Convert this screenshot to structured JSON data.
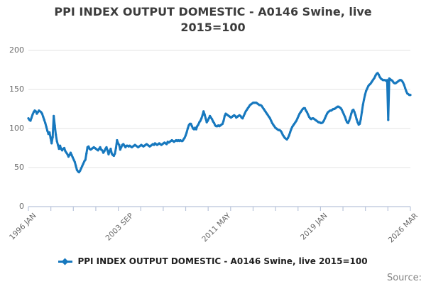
{
  "title": {
    "line1": "PPI INDEX OUTPUT DOMESTIC - A0146 Swine, live",
    "line2": "2015=100"
  },
  "legend": {
    "label": "PPI INDEX OUTPUT DOMESTIC - A0146 Swine, live 2015=100"
  },
  "source": {
    "label": "Source:"
  },
  "colors": {
    "series_blue": "#1778be",
    "gridline": "#e3e3e3",
    "axis_line": "#b9c4da",
    "title_text": "#3c3c3c",
    "tick_text": "#666666",
    "legend_text": "#1f1f1f",
    "source_text": "#838383"
  },
  "chart_data": {
    "type": "line",
    "title": "PPI INDEX OUTPUT DOMESTIC - A0146 Swine, live 2015=100",
    "xlabel": "",
    "ylabel": "",
    "x_unit": "month",
    "x_start": "1996 JAN",
    "x_end": "2026 MAR",
    "ylim": [
      0,
      200
    ],
    "y_ticks": [
      0,
      50,
      100,
      150,
      200
    ],
    "x_tick_labels": [
      {
        "month": 0,
        "label": "1996 JAN"
      },
      {
        "month": 92,
        "label": "2003 SEP"
      },
      {
        "month": 184,
        "label": "2011 MAY"
      },
      {
        "month": 276,
        "label": "2019 JAN"
      },
      {
        "month": 362,
        "label": "2026 MAR"
      }
    ],
    "x_minor_tick_count": 18,
    "grid": "horizontal",
    "legend_position": "bottom",
    "series": [
      {
        "name": "PPI INDEX OUTPUT DOMESTIC - A0146 Swine, live 2015=100",
        "color": "#1778be",
        "start_year": 1996,
        "values_per_year": 12,
        "values": [
          113,
          111,
          110,
          114,
          118,
          121,
          123,
          122,
          119,
          121,
          123,
          122,
          121,
          119,
          115,
          111,
          107,
          102,
          97,
          93,
          95,
          88,
          81,
          89,
          116,
          104,
          92,
          84,
          79,
          74,
          78,
          74,
          72,
          74,
          75,
          71,
          69,
          67,
          64,
          66,
          69,
          66,
          63,
          60,
          57,
          52,
          47,
          45,
          44,
          46,
          49,
          52,
          55,
          58,
          60,
          68,
          76,
          77,
          74,
          73,
          74,
          75,
          76,
          75,
          74,
          73,
          72,
          74,
          76,
          73,
          72,
          69,
          71,
          74,
          76,
          72,
          67,
          71,
          74,
          68,
          66,
          65,
          68,
          75,
          85,
          81,
          79,
          73,
          76,
          79,
          80,
          78,
          76,
          78,
          78,
          77,
          78,
          77,
          76,
          77,
          78,
          79,
          78,
          77,
          76,
          77,
          78,
          79,
          78,
          77,
          78,
          79,
          80,
          79,
          78,
          77,
          78,
          79,
          80,
          79,
          81,
          80,
          79,
          80,
          81,
          80,
          79,
          80,
          81,
          82,
          81,
          80,
          83,
          82,
          83,
          84,
          85,
          84,
          83,
          84,
          85,
          84,
          85,
          84,
          85,
          84,
          84,
          86,
          88,
          91,
          95,
          100,
          104,
          106,
          106,
          103,
          100,
          99,
          101,
          99,
          103,
          105,
          108,
          110,
          113,
          117,
          122,
          118,
          113,
          108,
          110,
          113,
          116,
          114,
          112,
          109,
          107,
          104,
          103,
          103,
          104,
          103,
          104,
          105,
          106,
          110,
          116,
          119,
          118,
          117,
          116,
          115,
          114,
          115,
          116,
          117,
          116,
          114,
          115,
          116,
          117,
          116,
          114,
          113,
          116,
          119,
          122,
          124,
          126,
          128,
          130,
          131,
          132,
          133,
          133,
          133,
          133,
          132,
          131,
          130,
          130,
          129,
          127,
          125,
          123,
          121,
          119,
          117,
          115,
          113,
          110,
          107,
          105,
          103,
          101,
          100,
          99,
          98,
          98,
          97,
          95,
          92,
          90,
          88,
          87,
          86,
          88,
          91,
          95,
          99,
          102,
          104,
          106,
          108,
          110,
          113,
          116,
          119,
          121,
          123,
          125,
          126,
          126,
          123,
          121,
          118,
          115,
          113,
          112,
          113,
          113,
          112,
          111,
          110,
          109,
          108,
          108,
          107,
          107,
          108,
          110,
          113,
          116,
          119,
          121,
          122,
          123,
          123,
          124,
          125,
          125,
          126,
          127,
          128,
          128,
          127,
          126,
          124,
          121,
          118,
          115,
          111,
          108,
          107,
          110,
          114,
          119,
          123,
          124,
          121,
          117,
          112,
          108,
          105,
          106,
          112,
          121,
          130,
          137,
          143,
          148,
          151,
          154,
          156,
          157,
          159,
          161,
          163,
          165,
          168,
          170,
          171,
          169,
          166,
          164,
          163,
          162,
          162,
          162,
          161,
          162,
          111,
          164,
          163,
          162,
          161,
          159,
          158,
          158,
          159,
          160,
          161,
          162,
          162,
          161,
          159,
          156,
          152,
          148,
          145,
          144,
          143,
          143
        ]
      }
    ]
  }
}
